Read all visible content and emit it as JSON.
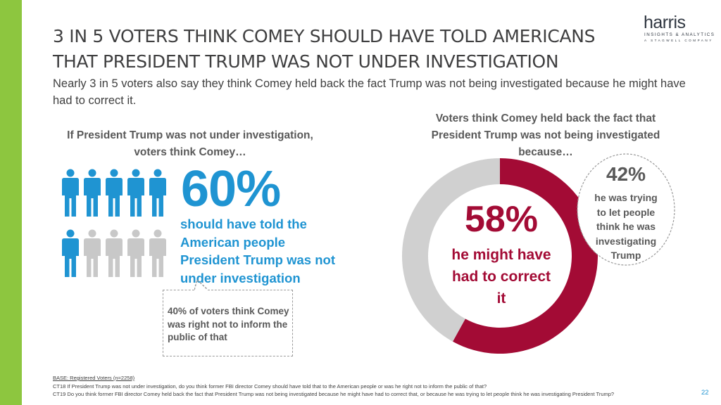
{
  "slide": {
    "title_line1": "3 IN 5 VOTERS THINK COMEY SHOULD HAVE TOLD AMERICANS",
    "title_line2": "THAT PRESIDENT TRUMP WAS NOT UNDER INVESTIGATION",
    "subtitle": "Nearly 3 in 5 voters also say they think Comey held back the fact Trump was not being investigated because he might have had to correct it.",
    "page_number": "22",
    "accent_color": "#8dc63f"
  },
  "logo": {
    "wordmark": "harris",
    "line1": "INSIGHTS & ANALYTICS",
    "line2": "A STAGWELL COMPANY"
  },
  "left_panel": {
    "heading_line1": "If President Trump was not under investigation,",
    "heading_line2": "voters think Comey…",
    "big_percent": "60%",
    "description_line1": "should have told the",
    "description_line2": "American people",
    "description_line3": "President Trump was not",
    "description_line4": "under investigation",
    "callout_line1": "40% of voters think Comey",
    "callout_line2": "was right not to inform the",
    "callout_line3": "public of that",
    "colors": {
      "highlight": "#1f94d2",
      "rest": "#c8c8c8"
    }
  },
  "right_panel": {
    "heading_line1": "Voters think Comey held back the fact that",
    "heading_line2": "President Trump was not being investigated",
    "heading_line3": "because…",
    "center_percent": "58%",
    "center_line1": "he might have",
    "center_line2": "had to correct",
    "center_line3": "it",
    "callout_percent": "42%",
    "callout_line1": "he was trying",
    "callout_line2": "to let people",
    "callout_line3": "think he was",
    "callout_line4": "investigating",
    "callout_line5": "Trump"
  },
  "chart_data": [
    {
      "type": "pictograph",
      "total_icons": 10,
      "highlighted_icons": 6,
      "values": [
        60,
        40
      ],
      "categories": [
        "should have told the American people President Trump was not under investigation",
        "was right not to inform the public of that"
      ],
      "colors": [
        "#1f94d2",
        "#c8c8c8"
      ]
    },
    {
      "type": "pie",
      "variant": "donut",
      "categories": [
        "he might have had to correct it",
        "he was trying to let people think he was investigating Trump"
      ],
      "values": [
        58,
        42
      ],
      "colors": [
        "#a30b35",
        "#d0d0d0"
      ]
    }
  ],
  "footnotes": {
    "base": "BASE: Registered Voters (n=2258)",
    "ct18": "CT18 If President Trump was not under investigation, do you think former FBI director Comey should have told that to the American people or was he right not to inform the public of that?",
    "ct19": "CT19 Do you think former FBI director Comey held back the fact that President Trump was not being investigated because he might have had to correct that, or because he was trying to let people think he was investigating President Trump?"
  }
}
